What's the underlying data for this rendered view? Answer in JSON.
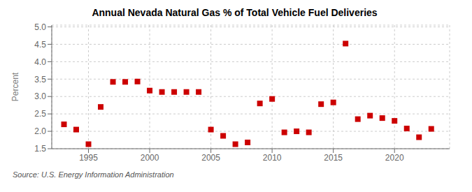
{
  "chart_data": {
    "type": "scatter",
    "title": "Annual Nevada Natural Gas % of Total Vehicle Fuel Deliveries",
    "ylabel": "Percent",
    "source": "Source: U.S. Energy Information Administration",
    "x": [
      1993,
      1994,
      1995,
      1996,
      1997,
      1998,
      1999,
      2000,
      2001,
      2002,
      2003,
      2004,
      2005,
      2006,
      2007,
      2008,
      2009,
      2010,
      2011,
      2012,
      2013,
      2014,
      2015,
      2016,
      2017,
      2018,
      2019,
      2020,
      2021,
      2022,
      2023
    ],
    "values": [
      2.2,
      2.05,
      1.63,
      2.7,
      3.42,
      3.42,
      3.43,
      3.17,
      3.13,
      3.13,
      3.13,
      3.13,
      2.05,
      1.87,
      1.63,
      1.68,
      2.8,
      2.93,
      1.97,
      2.0,
      1.97,
      2.78,
      2.83,
      4.52,
      2.35,
      2.45,
      2.38,
      2.3,
      2.08,
      1.83,
      2.07
    ],
    "color": "#cc0000",
    "marker": "square",
    "xlim": [
      1992.0,
      2024.5
    ],
    "ylim": [
      1.5,
      5.05
    ],
    "xticks": [
      1995,
      2000,
      2005,
      2010,
      2015,
      2020
    ],
    "yticks": [
      1.5,
      {
        "value": 2.0,
        "label": "2.0"
      },
      2.5,
      {
        "value": 3.0,
        "label": "3.0"
      },
      3.5,
      {
        "value": 4.0,
        "label": "4.0"
      },
      4.5,
      {
        "value": 5.0,
        "label": "5.0"
      }
    ],
    "grid": true
  }
}
